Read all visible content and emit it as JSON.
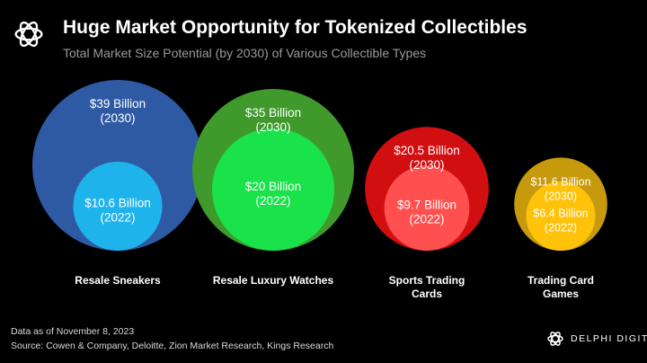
{
  "header": {
    "title": "Huge Market Opportunity for Tokenized Collectibles",
    "subtitle": "Total Market Size Potential (by 2030) of Various Collectible Types",
    "logo_icon": "delphi-flower-logo-icon"
  },
  "chart_data": {
    "type": "bubble",
    "title": "Huge Market Opportunity for Tokenized Collectibles",
    "subtitle": "Total Market Size Potential (by 2030) of Various Collectible Types",
    "unit": "Billion USD",
    "categories": [
      {
        "name": [
          "Resale Sneakers"
        ],
        "value_2030": 39,
        "label_2030": "$39 Billion",
        "year_2030": "(2030)",
        "value_2022": 10.6,
        "label_2022": "$10.6 Billion",
        "year_2022": "(2022)",
        "color_2030": "#2e5aa3",
        "color_2022": "#1fb3ec"
      },
      {
        "name": [
          "Resale Luxury Watches"
        ],
        "value_2030": 35,
        "label_2030": "$35 Billion",
        "year_2030": "(2030)",
        "value_2022": 20,
        "label_2022": "$20 Billion",
        "year_2022": "(2022)",
        "color_2030": "#3f9a2b",
        "color_2022": "#19e24a"
      },
      {
        "name": [
          "Sports Trading",
          "Cards"
        ],
        "value_2030": 20.5,
        "label_2030": "$20.5 Billion",
        "year_2030": "(2030)",
        "value_2022": 9.7,
        "label_2022": "$9.7 Billion",
        "year_2022": "(2022)",
        "color_2030": "#d10e10",
        "color_2022": "#ff4f4f"
      },
      {
        "name": [
          "Trading Card",
          "Games"
        ],
        "value_2030": 11.6,
        "label_2030": "$11.6 Billion",
        "year_2030": "(2030)",
        "value_2022": 6.4,
        "label_2022": "$6.4 Billion",
        "year_2022": "(2022)",
        "color_2030": "#c69a0c",
        "color_2022": "#ffc20a"
      }
    ]
  },
  "footer": {
    "date_note": "Data as of November 8, 2023",
    "source": "Source: Cowen & Company, Deloitte, Zion Market Research, Kings Research",
    "brand": "DELPHI DIGITAL",
    "brand_icon": "delphi-flower-logo-icon"
  }
}
